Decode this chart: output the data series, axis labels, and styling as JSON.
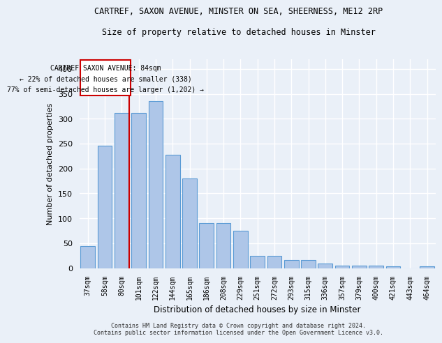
{
  "title": "CARTREF, SAXON AVENUE, MINSTER ON SEA, SHEERNESS, ME12 2RP",
  "subtitle": "Size of property relative to detached houses in Minster",
  "xlabel": "Distribution of detached houses by size in Minster",
  "ylabel": "Number of detached properties",
  "footer_line1": "Contains HM Land Registry data © Crown copyright and database right 2024.",
  "footer_line2": "Contains public sector information licensed under the Open Government Licence v3.0.",
  "categories": [
    "37sqm",
    "58sqm",
    "80sqm",
    "101sqm",
    "122sqm",
    "144sqm",
    "165sqm",
    "186sqm",
    "208sqm",
    "229sqm",
    "251sqm",
    "272sqm",
    "293sqm",
    "315sqm",
    "336sqm",
    "357sqm",
    "379sqm",
    "400sqm",
    "421sqm",
    "443sqm",
    "464sqm"
  ],
  "values": [
    44,
    246,
    312,
    312,
    335,
    228,
    180,
    91,
    91,
    75,
    25,
    25,
    16,
    16,
    9,
    5,
    5,
    5,
    4,
    0,
    4
  ],
  "bar_color": "#aec6e8",
  "bar_edge_color": "#5b9bd5",
  "background_color": "#eaf0f8",
  "grid_color": "#ffffff",
  "annotation_line_color": "#cc0000",
  "annotation_box_edge_color": "#cc0000",
  "annotation_box_bg": "#ffffff",
  "annotation_text_line1": "CARTREF SAXON AVENUE: 84sqm",
  "annotation_text_line2": "← 22% of detached houses are smaller (338)",
  "annotation_text_line3": "77% of semi-detached houses are larger (1,202) →",
  "property_bin_index": 2,
  "ylim": [
    0,
    420
  ],
  "yticks": [
    0,
    50,
    100,
    150,
    200,
    250,
    300,
    350,
    400
  ]
}
